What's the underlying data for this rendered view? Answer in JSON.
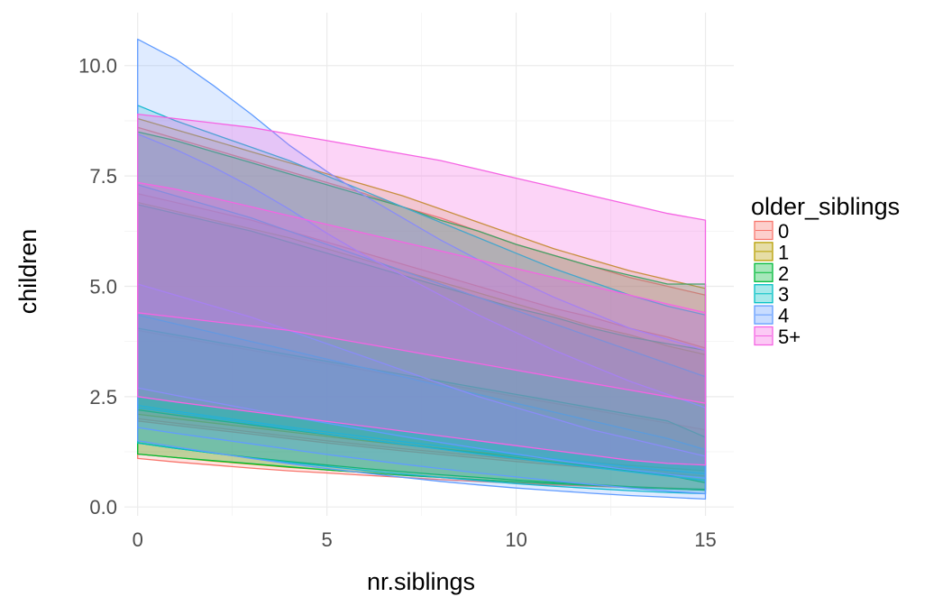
{
  "chart_data": {
    "type": "area",
    "xlabel": "nr.siblings",
    "ylabel": "children",
    "xlim": [
      -0.35,
      15.75
    ],
    "ylim": [
      -0.2,
      11.2
    ],
    "x_ticks": [
      0,
      5,
      10,
      15
    ],
    "x_tick_labels": [
      "0",
      "5",
      "10",
      "15"
    ],
    "y_ticks": [
      0,
      2.5,
      5,
      7.5,
      10
    ],
    "y_tick_labels": [
      "0.0",
      "2.5",
      "5.0",
      "7.5",
      "10.0"
    ],
    "grid": true,
    "legend": {
      "title": "older_siblings",
      "position": "right",
      "entries": [
        {
          "label": "0",
          "color": "#F8766D"
        },
        {
          "label": "1",
          "color": "#B79F00"
        },
        {
          "label": "2",
          "color": "#00BA38"
        },
        {
          "label": "3",
          "color": "#00BFC4"
        },
        {
          "label": "4",
          "color": "#619CFF"
        },
        {
          "label": "5+",
          "color": "#F564E3"
        }
      ]
    },
    "x": [
      0,
      1,
      2,
      3,
      4,
      5,
      6,
      7,
      8,
      9,
      10,
      11,
      12,
      13,
      14,
      15
    ],
    "series": [
      {
        "name": "0",
        "color": "#F8766D",
        "fill": "#F8766D",
        "opacity": 0.2,
        "ribbons": [
          {
            "x0": 0,
            "upper": [
              8.6,
              8.35,
              8.1,
              7.85,
              7.6,
              7.35,
              7.1,
              6.8,
              6.55,
              6.25,
              5.95,
              5.7,
              5.45,
              5.2,
              5.0,
              4.8
            ],
            "lower": [
              1.1,
              1.02,
              0.95,
              0.88,
              0.82,
              0.77,
              0.72,
              0.67,
              0.62,
              0.58,
              0.54,
              0.5,
              0.47,
              0.44,
              0.41,
              0.38
            ]
          },
          {
            "x0": 0,
            "upper": [
              7.1,
              6.9,
              6.7,
              6.5,
              6.25,
              6.0,
              5.75,
              5.5,
              5.25,
              5.0,
              4.75,
              4.5,
              4.3,
              4.05,
              3.85,
              3.6
            ],
            "lower": [
              2.0,
              1.9,
              1.8,
              1.7,
              1.6,
              1.5,
              1.41,
              1.32,
              1.24,
              1.16,
              1.08,
              1.01,
              0.94,
              0.87,
              0.81,
              0.75
            ]
          },
          {
            "x0": 0,
            "upper": [
              4.0,
              3.85,
              3.7,
              3.55,
              3.4,
              3.25,
              3.1,
              2.95,
              2.8,
              2.65,
              2.5,
              2.35,
              2.2,
              2.05,
              1.9,
              1.75
            ],
            "lower": [
              1.95,
              1.85,
              1.75,
              1.65,
              1.55,
              1.45,
              1.36,
              1.27,
              1.19,
              1.11,
              1.03,
              0.96,
              0.89,
              0.82,
              0.76,
              0.7
            ]
          }
        ]
      },
      {
        "name": "1",
        "color": "#B79F00",
        "fill": "#B79F00",
        "opacity": 0.2,
        "ribbons": [
          {
            "x0": 0,
            "upper": [
              8.8,
              8.55,
              8.3,
              8.05,
              7.8,
              7.55,
              7.3,
              7.05,
              6.75,
              6.45,
              6.15,
              5.85,
              5.6,
              5.35,
              5.15,
              4.95
            ],
            "lower": [
              1.2,
              1.12,
              1.04,
              0.97,
              0.9,
              0.84,
              0.78,
              0.72,
              0.67,
              0.62,
              0.57,
              0.53,
              0.49,
              0.46,
              0.43,
              0.4
            ]
          },
          {
            "x0": 0,
            "upper": [
              6.9,
              6.7,
              6.5,
              6.3,
              6.1,
              5.85,
              5.6,
              5.35,
              5.1,
              4.85,
              4.6,
              4.35,
              4.1,
              3.9,
              3.65,
              3.45
            ],
            "lower": [
              2.1,
              2.0,
              1.9,
              1.8,
              1.7,
              1.6,
              1.5,
              1.41,
              1.32,
              1.24,
              1.16,
              1.08,
              1.01,
              0.94,
              0.88,
              0.82
            ]
          }
        ]
      },
      {
        "name": "2",
        "color": "#00BA38",
        "fill": "#00BA38",
        "opacity": 0.2,
        "ribbons": [
          {
            "x0": 0,
            "upper": [
              8.5,
              8.3,
              8.05,
              7.8,
              7.55,
              7.3,
              7.05,
              6.8,
              6.5,
              6.25,
              5.95,
              5.7,
              5.45,
              5.25,
              5.05,
              5.05
            ],
            "lower": [
              1.45,
              1.33,
              1.22,
              1.12,
              1.03,
              0.95,
              0.87,
              0.8,
              0.73,
              0.67,
              0.61,
              0.56,
              0.51,
              0.46,
              0.42,
              0.4
            ]
          },
          {
            "x0": 0,
            "upper": [
              6.85,
              6.65,
              6.45,
              6.25,
              6.0,
              5.75,
              5.5,
              5.25,
              5.0,
              4.75,
              4.5,
              4.3,
              4.05,
              3.85,
              3.7,
              3.55
            ],
            "lower": [
              2.2,
              2.08,
              1.97,
              1.86,
              1.75,
              1.64,
              1.53,
              1.42,
              1.32,
              1.22,
              1.12,
              1.02,
              0.92,
              0.82,
              0.72,
              0.55
            ]
          },
          {
            "x0": 0,
            "upper": [
              4.05,
              3.9,
              3.75,
              3.6,
              3.45,
              3.3,
              3.15,
              3.0,
              2.85,
              2.7,
              2.55,
              2.4,
              2.25,
              2.1,
              1.95,
              1.58
            ],
            "lower": [
              1.2,
              1.12,
              1.05,
              0.98,
              0.91,
              0.84,
              0.78,
              0.72,
              0.67,
              0.62,
              0.57,
              0.53,
              0.49,
              0.45,
              0.41,
              0.38
            ]
          }
        ]
      },
      {
        "name": "3",
        "color": "#00BFC4",
        "fill": "#00BFC4",
        "opacity": 0.2,
        "ribbons": [
          {
            "x0": 0,
            "upper": [
              9.1,
              8.75,
              8.45,
              8.15,
              7.85,
              7.5,
              7.15,
              6.8,
              6.45,
              6.1,
              5.75,
              5.4,
              5.1,
              4.8,
              4.55,
              4.35
            ],
            "lower": [
              1.45,
              1.33,
              1.22,
              1.11,
              1.01,
              0.92,
              0.83,
              0.75,
              0.67,
              0.6,
              0.53,
              0.47,
              0.42,
              0.37,
              0.33,
              0.3
            ]
          },
          {
            "x0": 0,
            "upper": [
              7.3,
              7.05,
              6.8,
              6.55,
              6.25,
              5.95,
              5.65,
              5.35,
              5.05,
              4.75,
              4.45,
              4.15,
              3.85,
              3.55,
              3.25,
              2.95
            ],
            "lower": [
              2.3,
              2.17,
              2.05,
              1.93,
              1.81,
              1.7,
              1.59,
              1.48,
              1.38,
              1.28,
              1.18,
              1.09,
              1.0,
              0.91,
              0.83,
              0.75
            ]
          },
          {
            "x0": 0,
            "upper": [
              4.35,
              4.15,
              3.95,
              3.75,
              3.55,
              3.35,
              3.15,
              2.95,
              2.75,
              2.55,
              2.35,
              2.15,
              1.95,
              1.75,
              1.55,
              1.3
            ],
            "lower": [
              2.25,
              2.13,
              2.01,
              1.89,
              1.77,
              1.65,
              1.53,
              1.42,
              1.31,
              1.2,
              1.1,
              1.0,
              0.9,
              0.8,
              0.7,
              0.6
            ]
          }
        ]
      },
      {
        "name": "4",
        "color": "#619CFF",
        "fill": "#619CFF",
        "opacity": 0.2,
        "ribbons": [
          {
            "x0": 0,
            "upper": [
              10.6,
              10.15,
              9.55,
              8.9,
              8.2,
              7.6,
              7.05,
              6.55,
              6.05,
              5.6,
              5.15,
              4.75,
              4.4,
              4.05,
              3.8,
              3.55
            ],
            "lower": [
              1.5,
              1.36,
              1.23,
              1.1,
              0.98,
              0.87,
              0.77,
              0.67,
              0.58,
              0.5,
              0.43,
              0.37,
              0.31,
              0.26,
              0.22,
              0.18
            ]
          },
          {
            "x0": 0,
            "upper": [
              8.45,
              8.1,
              7.7,
              7.25,
              6.75,
              6.2,
              5.7,
              5.25,
              4.8,
              4.35,
              3.95,
              3.55,
              3.2,
              2.85,
              2.55,
              2.25
            ],
            "lower": [
              2.7,
              2.53,
              2.37,
              2.21,
              2.05,
              1.9,
              1.75,
              1.6,
              1.46,
              1.33,
              1.2,
              1.07,
              0.95,
              0.84,
              0.74,
              0.65
            ]
          },
          {
            "x0": 0,
            "upper": [
              5.05,
              4.8,
              4.55,
              4.3,
              4.0,
              3.7,
              3.4,
              3.1,
              2.8,
              2.5,
              2.25,
              2.0,
              1.75,
              1.55,
              1.35,
              1.15
            ],
            "lower": [
              1.8,
              1.67,
              1.55,
              1.43,
              1.31,
              1.19,
              1.08,
              0.97,
              0.87,
              0.77,
              0.68,
              0.59,
              0.51,
              0.43,
              0.36,
              0.3
            ]
          }
        ]
      },
      {
        "name": "5+",
        "color": "#F564E3",
        "fill": "#F564E3",
        "opacity": 0.28,
        "ribbons": [
          {
            "x0": 0,
            "upper": [
              8.9,
              8.8,
              8.7,
              8.6,
              8.45,
              8.3,
              8.15,
              8.0,
              7.85,
              7.65,
              7.45,
              7.25,
              7.05,
              6.85,
              6.65,
              6.5
            ],
            "lower": [
              2.5,
              2.38,
              2.27,
              2.16,
              2.05,
              1.94,
              1.83,
              1.72,
              1.61,
              1.5,
              1.39,
              1.28,
              1.17,
              1.06,
              0.99,
              0.95
            ]
          },
          {
            "x0": 0,
            "upper": [
              7.35,
              7.2,
              7.0,
              6.8,
              6.6,
              6.4,
              6.2,
              6.0,
              5.8,
              5.6,
              5.4,
              5.2,
              5.0,
              4.8,
              4.6,
              4.4
            ],
            "lower": [
              4.4,
              4.3,
              4.2,
              4.1,
              4.0,
              3.85,
              3.7,
              3.55,
              3.4,
              3.25,
              3.1,
              2.95,
              2.8,
              2.65,
              2.5,
              2.35
            ]
          }
        ]
      }
    ]
  }
}
